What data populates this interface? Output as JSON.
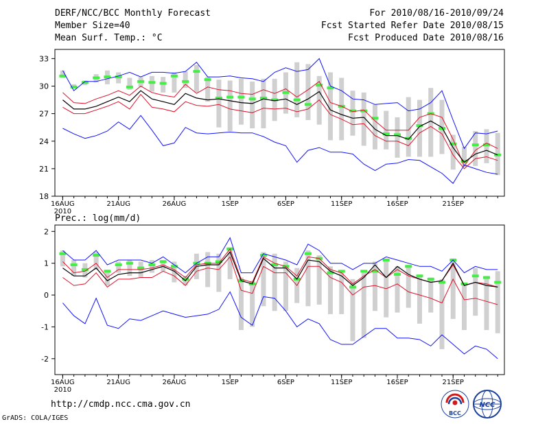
{
  "header": {
    "title": "DERF/NCC/BCC Monthly Forecast",
    "member_size": "Member Size=40",
    "variable": "Mean Surf. Temp.: °C",
    "period": "For 2010/08/16-2010/09/24",
    "fcst_started": "Fcst Started Refer Date 2010/08/15",
    "fcst_produced": "Fcst Produced Date 2010/08/16"
  },
  "footer": {
    "url": "http://cmdp.ncc.cma.gov.cn",
    "credit": "GrADS: COLA/IGES",
    "logo_left_text": "BCC",
    "logo_right_text": "NCC"
  },
  "colors": {
    "max_min": "#1010ff",
    "spread": "#e0102a",
    "mean": "#000000",
    "box": "#d0d0d0",
    "median": "#44ee44"
  },
  "chart_data": [
    {
      "type": "line",
      "title": "Mean Surf. Temp.: °C",
      "x_label": "day",
      "x_ticks": [
        {
          "day": 1,
          "label": "16AUG"
        },
        {
          "day": 6,
          "label": "21AUG"
        },
        {
          "day": 11,
          "label": "26AUG"
        },
        {
          "day": 16,
          "label": "1SEP"
        },
        {
          "day": 21,
          "label": "6SEP"
        },
        {
          "day": 26,
          "label": "11SEP"
        },
        {
          "day": 31,
          "label": "16SEP"
        },
        {
          "day": 36,
          "label": "21SEP"
        }
      ],
      "year_label": "2010",
      "ylim": [
        18,
        34
      ],
      "y_ticks": [
        18,
        21,
        24,
        27,
        30,
        33
      ],
      "x_range": [
        0.3,
        40.6
      ],
      "series": [
        {
          "name": "max",
          "role": "max",
          "values": [
            31.7,
            29.5,
            30.5,
            30.5,
            30.8,
            31.1,
            31.5,
            31.0,
            31.5,
            31.5,
            31.4,
            31.6,
            32.6,
            31.0,
            31.0,
            31.1,
            30.9,
            30.8,
            30.5,
            31.5,
            32.0,
            31.6,
            31.8,
            33.0,
            30.0,
            29.5,
            28.6,
            28.5,
            28.0,
            28.1,
            28.2,
            27.3,
            27.5,
            28.2,
            29.5,
            26.3,
            23.2,
            24.9,
            24.8,
            25.1
          ]
        },
        {
          "name": "upper",
          "role": "upper",
          "values": [
            29.3,
            28.2,
            28.1,
            28.6,
            29.0,
            29.5,
            29.0,
            30.0,
            29.3,
            29.0,
            28.8,
            30.2,
            29.2,
            29.9,
            29.6,
            29.5,
            29.2,
            29.1,
            29.6,
            29.2,
            29.7,
            28.8,
            29.6,
            30.5,
            28.2,
            27.8,
            27.2,
            27.4,
            26.2,
            25.2,
            25.2,
            25.2,
            26.6,
            27.0,
            26.6,
            24.2,
            21.3,
            23.0,
            23.8,
            23.2
          ]
        },
        {
          "name": "mean",
          "role": "mean",
          "values": [
            28.5,
            27.5,
            27.5,
            27.8,
            28.3,
            28.8,
            28.3,
            29.5,
            28.6,
            28.3,
            28.0,
            29.2,
            28.7,
            28.5,
            28.6,
            28.4,
            28.2,
            28.1,
            28.6,
            28.4,
            28.6,
            28.0,
            28.6,
            29.4,
            27.4,
            26.9,
            26.5,
            26.6,
            25.3,
            24.6,
            24.6,
            24.2,
            25.6,
            26.2,
            25.5,
            23.3,
            21.7,
            22.6,
            23.0,
            22.5
          ]
        },
        {
          "name": "lower",
          "role": "lower",
          "values": [
            27.7,
            27.0,
            27.0,
            27.4,
            27.8,
            28.3,
            27.5,
            29.1,
            27.7,
            27.5,
            27.2,
            28.3,
            27.9,
            27.8,
            28.0,
            27.5,
            27.3,
            27.1,
            27.6,
            27.5,
            27.6,
            27.2,
            27.5,
            28.5,
            26.9,
            26.4,
            25.8,
            25.9,
            24.6,
            24.0,
            24.0,
            23.5,
            24.9,
            25.6,
            24.8,
            22.5,
            21.0,
            22.1,
            22.3,
            21.9
          ]
        },
        {
          "name": "min",
          "role": "min",
          "values": [
            25.4,
            24.8,
            24.3,
            24.6,
            25.1,
            26.1,
            25.3,
            26.8,
            25.2,
            23.5,
            23.8,
            25.5,
            24.9,
            24.8,
            24.9,
            25.0,
            24.9,
            24.9,
            24.5,
            23.9,
            23.5,
            21.7,
            23.0,
            23.3,
            22.8,
            22.8,
            22.6,
            21.5,
            20.8,
            21.5,
            21.6,
            22.0,
            21.9,
            21.2,
            20.5,
            19.4,
            21.4,
            21.0,
            20.6,
            20.4
          ]
        }
      ],
      "boxes": [
        {
          "day": 1,
          "low": 30.9,
          "high": 31.7,
          "median": 31.1
        },
        {
          "day": 2,
          "low": 29.8,
          "high": 30.2,
          "median": 29.9
        },
        {
          "day": 3,
          "low": 30.1,
          "high": 30.6,
          "median": 30.4
        },
        {
          "day": 4,
          "low": 30.4,
          "high": 31.3,
          "median": 30.9
        },
        {
          "day": 5,
          "low": 30.2,
          "high": 31.7,
          "median": 31.0
        },
        {
          "day": 6,
          "low": 30.3,
          "high": 31.5,
          "median": 31.0
        },
        {
          "day": 7,
          "low": 29.6,
          "high": 30.9,
          "median": 29.9
        },
        {
          "day": 8,
          "low": 29.9,
          "high": 31.0,
          "median": 30.5
        },
        {
          "day": 9,
          "low": 29.4,
          "high": 31.1,
          "median": 30.4
        },
        {
          "day": 10,
          "low": 29.3,
          "high": 31.0,
          "median": 30.3
        },
        {
          "day": 11,
          "low": 29.3,
          "high": 31.5,
          "median": 31.1
        },
        {
          "day": 12,
          "low": 29.8,
          "high": 31.6,
          "median": 30.5
        },
        {
          "day": 13,
          "low": 29.3,
          "high": 32.3,
          "median": 31.6
        },
        {
          "day": 14,
          "low": 28.3,
          "high": 31.0,
          "median": 30.7
        },
        {
          "day": 15,
          "low": 25.5,
          "high": 30.7,
          "median": 28.7
        },
        {
          "day": 16,
          "low": 25.1,
          "high": 30.6,
          "median": 28.8
        },
        {
          "day": 17,
          "low": 25.8,
          "high": 30.8,
          "median": 28.8
        },
        {
          "day": 18,
          "low": 25.4,
          "high": 30.5,
          "median": 28.6
        },
        {
          "day": 19,
          "low": 25.4,
          "high": 30.8,
          "median": 28.7
        },
        {
          "day": 20,
          "low": 26.2,
          "high": 30.8,
          "median": 28.5
        },
        {
          "day": 21,
          "low": 27.0,
          "high": 31.5,
          "median": 29.3
        },
        {
          "day": 22,
          "low": 26.6,
          "high": 32.6,
          "median": 28.5
        },
        {
          "day": 23,
          "low": 26.3,
          "high": 32.4,
          "median": 28.0
        },
        {
          "day": 24,
          "low": 25.8,
          "high": 31.1,
          "median": 30.1
        },
        {
          "day": 25,
          "low": 24.1,
          "high": 31.5,
          "median": 29.8
        },
        {
          "day": 26,
          "low": 24.1,
          "high": 30.9,
          "median": 27.8
        },
        {
          "day": 27,
          "low": 24.6,
          "high": 29.5,
          "median": 27.3
        },
        {
          "day": 28,
          "low": 23.5,
          "high": 29.3,
          "median": 27.3
        },
        {
          "day": 29,
          "low": 23.1,
          "high": 28.0,
          "median": 26.5
        },
        {
          "day": 30,
          "low": 23.1,
          "high": 27.3,
          "median": 24.8
        },
        {
          "day": 31,
          "low": 22.2,
          "high": 26.6,
          "median": 24.7
        },
        {
          "day": 32,
          "low": 22.3,
          "high": 28.8,
          "median": 24.3
        },
        {
          "day": 33,
          "low": 22.3,
          "high": 28.5,
          "median": 25.7
        },
        {
          "day": 34,
          "low": 22.3,
          "high": 29.8,
          "median": 27.0
        },
        {
          "day": 35,
          "low": 22.6,
          "high": 28.5,
          "median": 25.4
        },
        {
          "day": 36,
          "low": 20.9,
          "high": 24.7,
          "median": 23.7
        },
        {
          "day": 37,
          "low": 21.2,
          "high": 23.4,
          "median": 21.8
        },
        {
          "day": 38,
          "low": 21.3,
          "high": 25.1,
          "median": 23.6
        },
        {
          "day": 39,
          "low": 21.6,
          "high": 25.3,
          "median": 23.6
        },
        {
          "day": 40,
          "low": 20.3,
          "high": 24.9,
          "median": 22.5
        }
      ]
    },
    {
      "type": "line",
      "title": "Prec.: log(mm/d)",
      "x_label": "day",
      "x_ticks": [
        {
          "day": 1,
          "label": "16AUG"
        },
        {
          "day": 6,
          "label": "21AUG"
        },
        {
          "day": 11,
          "label": "26AUG"
        },
        {
          "day": 16,
          "label": "1SEP"
        },
        {
          "day": 21,
          "label": "6SEP"
        },
        {
          "day": 26,
          "label": "11SEP"
        },
        {
          "day": 31,
          "label": "16SEP"
        },
        {
          "day": 36,
          "label": "21SEP"
        }
      ],
      "year_label": "2010",
      "ylim": [
        -2.5,
        2.2
      ],
      "y_ticks": [
        -2,
        -1,
        0,
        1,
        2
      ],
      "x_range": [
        0.3,
        40.6
      ],
      "series": [
        {
          "name": "max",
          "role": "max",
          "values": [
            1.4,
            1.1,
            1.1,
            1.4,
            0.95,
            1.1,
            1.1,
            1.1,
            1.0,
            1.2,
            0.95,
            0.7,
            1.0,
            1.2,
            1.2,
            1.8,
            0.7,
            0.7,
            1.3,
            1.2,
            1.1,
            0.95,
            1.6,
            1.4,
            1.0,
            1.0,
            0.8,
            1.0,
            1.0,
            1.2,
            1.1,
            1.0,
            0.9,
            0.9,
            0.75,
            1.1,
            0.7,
            0.9,
            0.8,
            0.8
          ]
        },
        {
          "name": "upper",
          "role": "upper",
          "values": [
            1.05,
            0.7,
            0.75,
            1.0,
            0.55,
            0.8,
            0.8,
            0.8,
            0.85,
            0.95,
            0.8,
            0.55,
            0.95,
            1.0,
            1.0,
            1.45,
            0.5,
            0.4,
            1.2,
            1.0,
            0.9,
            0.6,
            1.2,
            1.15,
            0.8,
            0.7,
            0.35,
            0.6,
            0.8,
            0.55,
            0.8,
            0.6,
            0.5,
            0.4,
            0.45,
            0.95,
            0.3,
            0.4,
            0.35,
            0.25
          ]
        },
        {
          "name": "mean",
          "role": "mean",
          "values": [
            0.85,
            0.6,
            0.6,
            0.85,
            0.45,
            0.65,
            0.7,
            0.7,
            0.8,
            0.9,
            0.75,
            0.45,
            0.9,
            0.95,
            0.95,
            1.35,
            0.45,
            0.35,
            1.15,
            0.85,
            0.85,
            0.5,
            1.1,
            1.05,
            0.75,
            0.6,
            0.3,
            0.55,
            0.95,
            0.55,
            0.9,
            0.65,
            0.5,
            0.4,
            0.45,
            1.0,
            0.3,
            0.4,
            0.3,
            0.25
          ]
        },
        {
          "name": "lower",
          "role": "lower",
          "values": [
            0.55,
            0.3,
            0.35,
            0.7,
            0.25,
            0.5,
            0.5,
            0.55,
            0.55,
            0.75,
            0.6,
            0.3,
            0.75,
            0.85,
            0.8,
            1.2,
            0.15,
            0.05,
            0.9,
            0.7,
            0.7,
            0.3,
            0.9,
            0.9,
            0.55,
            0.4,
            0.0,
            0.25,
            0.3,
            0.2,
            0.35,
            0.1,
            0.0,
            -0.1,
            -0.25,
            0.5,
            -0.15,
            -0.1,
            -0.2,
            -0.3
          ]
        },
        {
          "name": "min",
          "role": "min",
          "values": [
            -0.25,
            -0.65,
            -0.9,
            -0.1,
            -0.95,
            -1.05,
            -0.75,
            -0.8,
            -0.65,
            -0.5,
            -0.6,
            -0.7,
            -0.65,
            -0.6,
            -0.45,
            0.1,
            -0.7,
            -0.95,
            -0.05,
            -0.1,
            -0.5,
            -1.0,
            -0.75,
            -0.9,
            -1.4,
            -1.55,
            -1.55,
            -1.3,
            -1.05,
            -1.05,
            -1.35,
            -1.35,
            -1.4,
            -1.6,
            -1.25,
            -1.55,
            -1.85,
            -1.6,
            -1.7,
            -2.0
          ]
        }
      ],
      "boxes": [
        {
          "day": 1,
          "low": 0.9,
          "high": 1.4,
          "median": 1.3
        },
        {
          "day": 2,
          "low": 0.6,
          "high": 1.1,
          "median": 0.95
        },
        {
          "day": 3,
          "low": 0.55,
          "high": 1.0,
          "median": 0.8
        },
        {
          "day": 4,
          "low": 0.8,
          "high": 1.35,
          "median": 1.25
        },
        {
          "day": 5,
          "low": 0.3,
          "high": 0.8,
          "median": 0.75
        },
        {
          "day": 6,
          "low": 0.7,
          "high": 1.05,
          "median": 0.95
        },
        {
          "day": 7,
          "low": 0.6,
          "high": 1.1,
          "median": 1.0
        },
        {
          "day": 8,
          "low": 0.55,
          "high": 1.05,
          "median": 0.85
        },
        {
          "day": 9,
          "low": 0.7,
          "high": 1.1,
          "median": 0.95
        },
        {
          "day": 10,
          "low": 0.75,
          "high": 1.1,
          "median": 1.05
        },
        {
          "day": 11,
          "low": 0.4,
          "high": 1.05,
          "median": 0.9
        },
        {
          "day": 12,
          "low": 0.3,
          "high": 0.6,
          "median": 0.5
        },
        {
          "day": 13,
          "low": 0.5,
          "high": 1.3,
          "median": 1.0
        },
        {
          "day": 14,
          "low": 0.25,
          "high": 1.35,
          "median": 1.0
        },
        {
          "day": 15,
          "low": 0.1,
          "high": 1.3,
          "median": 1.05
        },
        {
          "day": 16,
          "low": 0.5,
          "high": 1.5,
          "median": 1.45
        },
        {
          "day": 17,
          "low": -1.1,
          "high": 0.55,
          "median": 0.45
        },
        {
          "day": 18,
          "low": -1.0,
          "high": 0.45,
          "median": 0.35
        },
        {
          "day": 19,
          "low": -0.35,
          "high": 1.35,
          "median": 1.25
        },
        {
          "day": 20,
          "low": -0.5,
          "high": 1.3,
          "median": 0.95
        },
        {
          "day": 21,
          "low": -0.5,
          "high": 1.05,
          "median": 0.9
        },
        {
          "day": 22,
          "low": -0.25,
          "high": 0.85,
          "median": 0.5
        },
        {
          "day": 23,
          "low": -0.35,
          "high": 1.4,
          "median": 1.3
        },
        {
          "day": 24,
          "low": -0.3,
          "high": 1.25,
          "median": 1.15
        },
        {
          "day": 25,
          "low": -0.6,
          "high": 0.9,
          "median": 0.7
        },
        {
          "day": 26,
          "low": -0.6,
          "high": 0.75,
          "median": 0.75
        },
        {
          "day": 27,
          "low": -1.45,
          "high": 0.5,
          "median": 0.25
        },
        {
          "day": 28,
          "low": -1.35,
          "high": 0.75,
          "median": 0.75
        },
        {
          "day": 29,
          "low": -0.5,
          "high": 1.05,
          "median": 0.75
        },
        {
          "day": 30,
          "low": -0.7,
          "high": 1.1,
          "median": 1.1
        },
        {
          "day": 31,
          "low": -0.55,
          "high": 0.9,
          "median": 0.65
        },
        {
          "day": 32,
          "low": -0.4,
          "high": 0.95,
          "median": 0.9
        },
        {
          "day": 33,
          "low": -0.9,
          "high": 0.65,
          "median": 0.6
        },
        {
          "day": 34,
          "low": -0.55,
          "high": 0.55,
          "median": 0.5
        },
        {
          "day": 35,
          "low": -1.7,
          "high": 0.5,
          "median": 0.4
        },
        {
          "day": 36,
          "low": -0.75,
          "high": 1.15,
          "median": 1.1
        },
        {
          "day": 37,
          "low": -1.1,
          "high": 0.35,
          "median": 0.35
        },
        {
          "day": 38,
          "low": -0.65,
          "high": 0.85,
          "median": 0.6
        },
        {
          "day": 39,
          "low": -1.1,
          "high": 0.6,
          "median": 0.55
        },
        {
          "day": 40,
          "low": -1.2,
          "high": 0.75,
          "median": 0.4
        }
      ]
    }
  ]
}
